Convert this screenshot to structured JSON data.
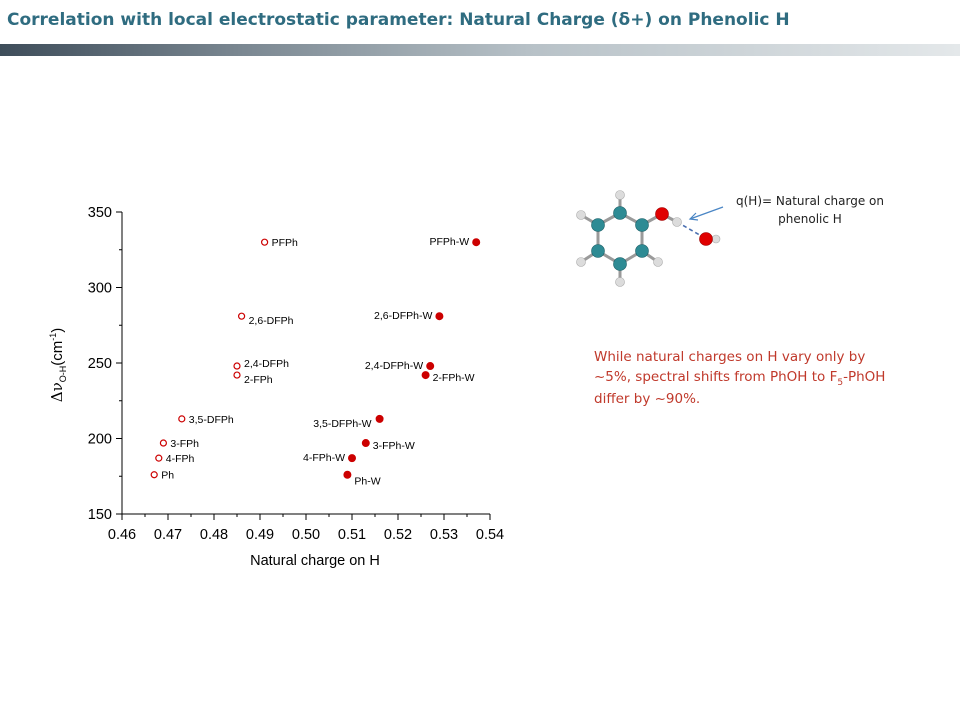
{
  "slide": {
    "title": "Correlation with local electrostatic parameter: Natural Charge (δ+) on Phenolic H",
    "q_note_line1": "q(H)= Natural charge on",
    "q_note_line2": "phenolic H",
    "note_part1": "While natural charges on H vary only by ~5%,  spectral shifts from PhOH to F",
    "note_sub": "5",
    "note_part2": "-PhOH differ by ~90%."
  },
  "colors": {
    "title": "#2f6c80",
    "marker": "#cc0000",
    "note_text": "#c0392b",
    "carbon_atom": "#2e8b94",
    "oxygen_atom": "#e00000",
    "hydrogen_atom": "#dddddd"
  },
  "chart_data": {
    "type": "scatter",
    "xlabel": "Natural charge on H",
    "ylabel_symbol": "Δν",
    "ylabel_sub": "O-H",
    "ylabel_unit": "(cm",
    "ylabel_sup": "-1",
    "ylabel_close": ")",
    "xlim": [
      0.46,
      0.54
    ],
    "ylim": [
      150,
      350
    ],
    "x_ticks": [
      "0.46",
      "0.47",
      "0.48",
      "0.49",
      "0.50",
      "0.51",
      "0.52",
      "0.53",
      "0.54"
    ],
    "y_ticks": [
      "150",
      "200",
      "250",
      "300",
      "350"
    ],
    "grid": false,
    "series": [
      {
        "marker": "open-circle",
        "points": [
          {
            "label": "PFPh",
            "x": 0.491,
            "y": 330
          },
          {
            "label": "2,6-DFPh",
            "x": 0.486,
            "y": 281
          },
          {
            "label": "2,4-DFPh",
            "x": 0.485,
            "y": 248
          },
          {
            "label": "2-FPh",
            "x": 0.485,
            "y": 242
          },
          {
            "label": "3,5-DFPh",
            "x": 0.473,
            "y": 213
          },
          {
            "label": "3-FPh",
            "x": 0.469,
            "y": 197
          },
          {
            "label": "4-FPh",
            "x": 0.468,
            "y": 187
          },
          {
            "label": "Ph",
            "x": 0.467,
            "y": 176
          }
        ]
      },
      {
        "marker": "filled-circle",
        "points": [
          {
            "label": "PFPh-W",
            "x": 0.537,
            "y": 330
          },
          {
            "label": "2,6-DFPh-W",
            "x": 0.529,
            "y": 281
          },
          {
            "label": "2,4-DFPh-W",
            "x": 0.527,
            "y": 248
          },
          {
            "label": "2-FPh-W",
            "x": 0.526,
            "y": 242
          },
          {
            "label": "3,5-DFPh-W",
            "x": 0.516,
            "y": 213
          },
          {
            "label": "3-FPh-W",
            "x": 0.513,
            "y": 197
          },
          {
            "label": "4-FPh-W",
            "x": 0.51,
            "y": 187
          },
          {
            "label": "Ph-W",
            "x": 0.509,
            "y": 176
          }
        ]
      }
    ]
  }
}
